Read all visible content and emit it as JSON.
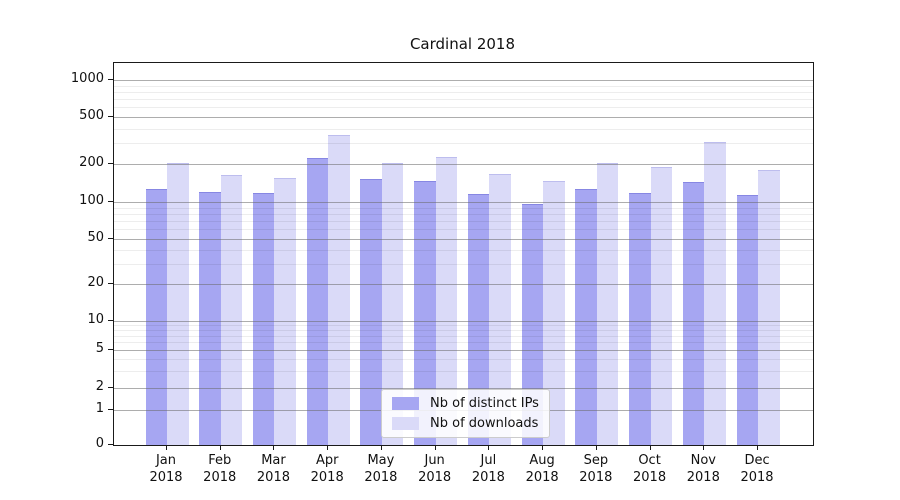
{
  "title": "Cardinal 2018",
  "colors": {
    "bar_distinct_ips": "#a6a6f2",
    "bar_downloads": "#dadaf8",
    "grid_major": "#a8a8a8",
    "grid_minor": "#e9e9e9",
    "axis": "#1a1a1a"
  },
  "legend": {
    "items": [
      {
        "label": "Nb of distinct IPs",
        "swatch": "#a6a6f2"
      },
      {
        "label": "Nb of downloads",
        "swatch": "#dadaf8"
      }
    ]
  },
  "chart_data": {
    "type": "bar",
    "title": "Cardinal 2018",
    "categories": [
      "Jan 2018",
      "Feb 2018",
      "Mar 2018",
      "Apr 2018",
      "May 2018",
      "Jun 2018",
      "Jul 2018",
      "Aug 2018",
      "Sep 2018",
      "Oct 2018",
      "Nov 2018",
      "Dec 2018"
    ],
    "series": [
      {
        "name": "Nb of distinct IPs",
        "color": "#a6a6f2",
        "values": [
          127,
          120,
          118,
          225,
          151,
          147,
          114,
          96,
          126,
          117,
          144,
          113
        ]
      },
      {
        "name": "Nb of downloads",
        "color": "#dadaf8",
        "values": [
          205,
          163,
          155,
          348,
          205,
          228,
          165,
          145,
          202,
          187,
          305,
          177
        ]
      }
    ],
    "xlabel": "",
    "ylabel": "",
    "yscale": "symlog",
    "ylim": [
      0,
      1500
    ],
    "yticks": [
      0,
      1,
      2,
      5,
      10,
      20,
      50,
      100,
      200,
      500,
      1000
    ],
    "yticks_minor": [
      3,
      4,
      6,
      7,
      8,
      9,
      30,
      40,
      60,
      70,
      80,
      90,
      300,
      400,
      600,
      700,
      800,
      900
    ],
    "grid": true,
    "legend_position": "lower center"
  }
}
